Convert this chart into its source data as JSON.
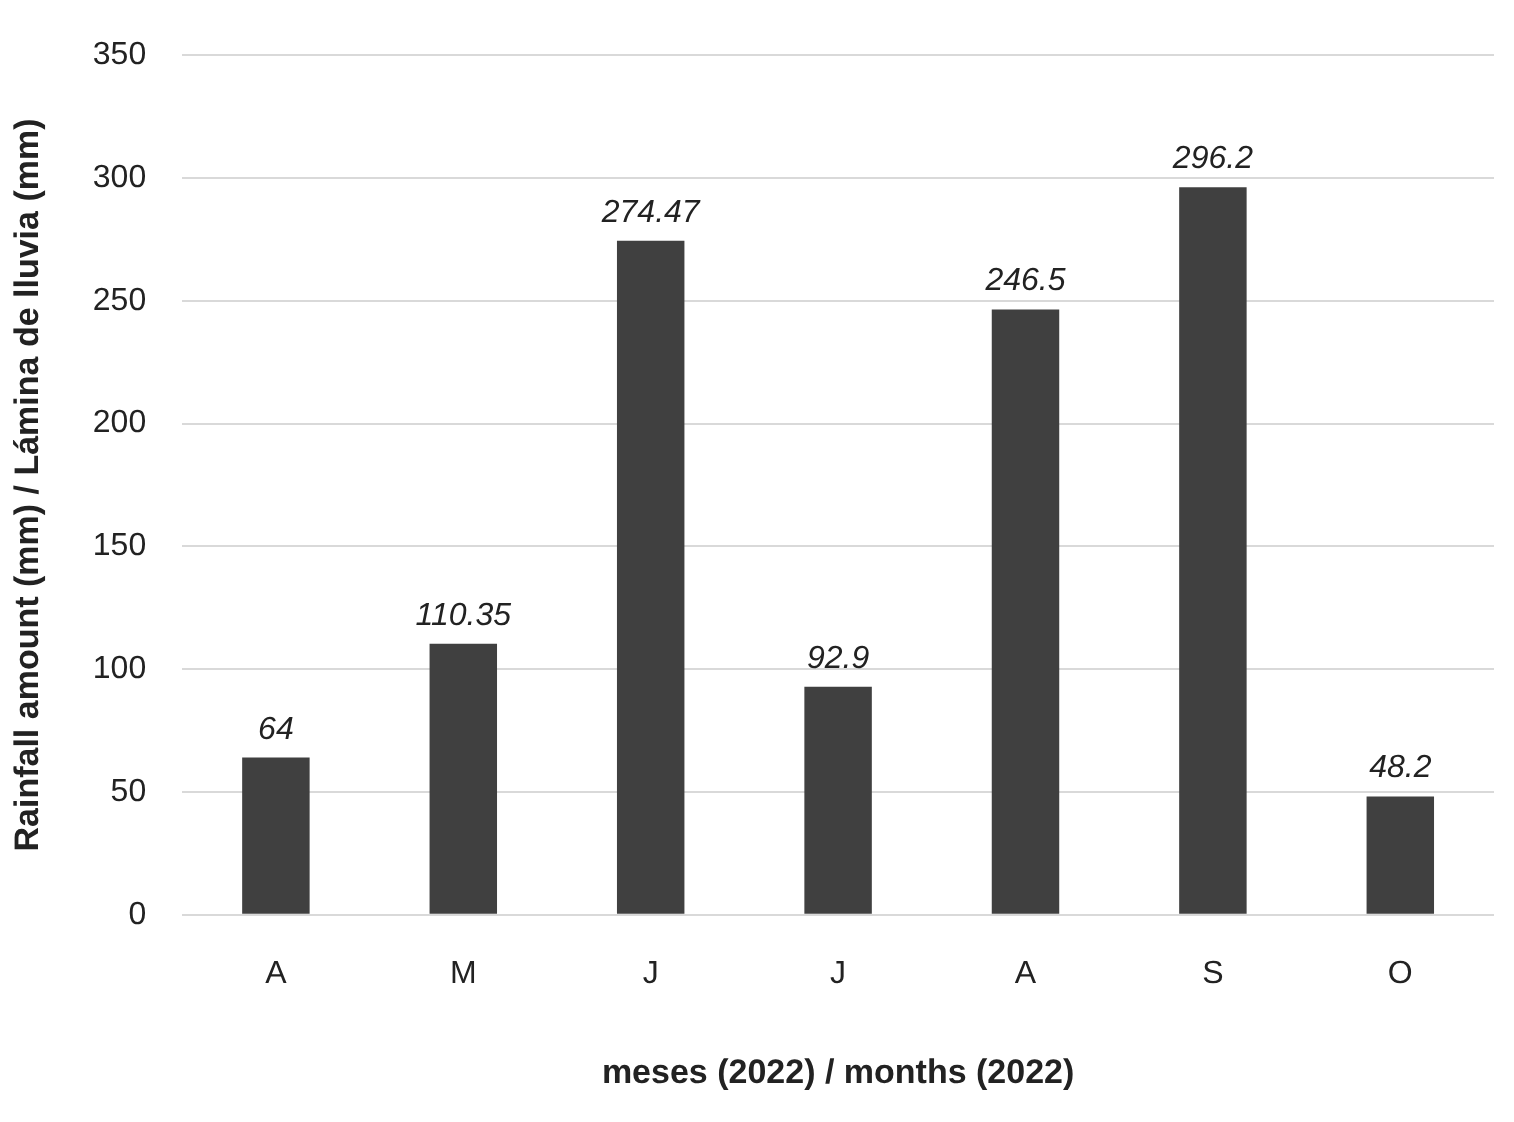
{
  "chart_data": {
    "type": "bar",
    "xlabel": "meses (2022) / months (2022)",
    "ylabel": "Rainfall amount (mm) / Lámina de lluvia (mm)",
    "categories": [
      "A",
      "M",
      "J",
      "J",
      "A",
      "S",
      "O"
    ],
    "values": [
      64,
      110.35,
      274.47,
      92.9,
      246.5,
      296.2,
      48.2
    ],
    "value_labels": [
      "64",
      "110.35",
      "274.47",
      "92.9",
      "246.5",
      "296.2",
      "48.2"
    ],
    "color": "#404040",
    "ylim": [
      0,
      350
    ],
    "yticks": [
      0,
      50,
      100,
      150,
      200,
      250,
      300,
      350
    ],
    "grid": "y",
    "legend": false
  }
}
